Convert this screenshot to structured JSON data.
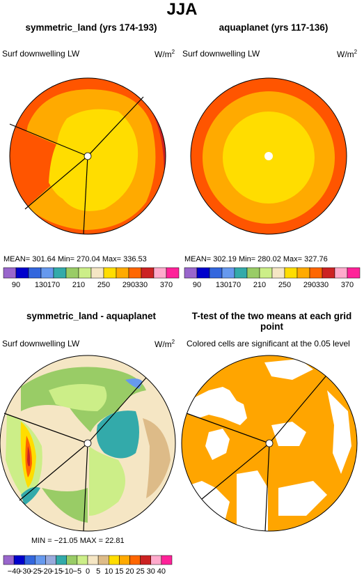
{
  "figure": {
    "title": "JJA"
  },
  "panels": [
    {
      "title": "symmetric_land (yrs 174-193)",
      "variable": "Surf downwelling LW",
      "units_base": "W/m",
      "units_exp": "2",
      "stats": "MEAN= 301.64   Min= 270.04   Max= 336.53"
    },
    {
      "title": "aquaplanet (yrs 117-136)",
      "variable": "Surf downwelling LW",
      "units_base": "W/m",
      "units_exp": "2",
      "stats": "MEAN= 302.19   Min= 280.02   Max= 327.76"
    },
    {
      "title": "symmetric_land - aquaplanet",
      "variable": "Surf downwelling LW",
      "units_base": "W/m",
      "units_exp": "2",
      "stats": "MIN = −21.05  MAX =   22.81"
    },
    {
      "title": "T-test of the two means at each grid point",
      "variable": "Colored cells are significant at the 0.05 level"
    }
  ],
  "chart_data": [
    {
      "type": "heatmap",
      "title": "symmetric_land (yrs 174-193)",
      "colorbar_labels": [
        "90",
        "130",
        "170",
        "210",
        "250",
        "290",
        "330",
        "370"
      ],
      "colorbar_colors": [
        "#9966cc",
        "#0000cc",
        "#3366dd",
        "#6699ee",
        "#33aaaa",
        "#99cc66",
        "#ccee88",
        "#f5e6c4",
        "#ffdd00",
        "#ffaa00",
        "#ff6600",
        "#cc2222",
        "#ffaacc",
        "#ff2299"
      ]
    },
    {
      "type": "heatmap",
      "title": "aquaplanet (yrs 117-136)",
      "colorbar_labels": [
        "90",
        "130",
        "170",
        "210",
        "250",
        "290",
        "330",
        "370"
      ],
      "colorbar_colors": [
        "#9966cc",
        "#0000cc",
        "#3366dd",
        "#6699ee",
        "#33aaaa",
        "#99cc66",
        "#ccee88",
        "#f5e6c4",
        "#ffdd00",
        "#ffaa00",
        "#ff6600",
        "#cc2222",
        "#ffaacc",
        "#ff2299"
      ]
    },
    {
      "type": "heatmap",
      "title": "symmetric_land - aquaplanet",
      "colorbar_labels": [
        "−40",
        "−30",
        "−25",
        "−20",
        "−15",
        "−10",
        "−5",
        "0",
        "5",
        "10",
        "15",
        "20",
        "25",
        "30",
        "40"
      ],
      "colorbar_colors": [
        "#9966cc",
        "#0000cc",
        "#3366dd",
        "#6699ee",
        "#99aadd",
        "#33aaaa",
        "#99cc66",
        "#ccee88",
        "#f5e6c4",
        "#ddbb88",
        "#ffdd00",
        "#ffaa00",
        "#ff6600",
        "#cc2222",
        "#ffaacc",
        "#ff2299"
      ]
    },
    {
      "type": "heatmap",
      "title": "T-test of the two means at each grid point",
      "significant_color": "#ffa500"
    }
  ]
}
